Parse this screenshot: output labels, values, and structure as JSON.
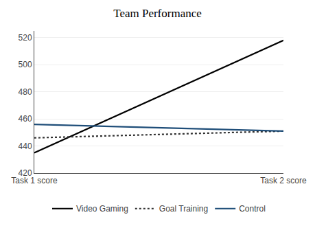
{
  "chart_data": {
    "type": "line",
    "title": "Team Performance",
    "categories": [
      "Task 1 score",
      "Task 2 score"
    ],
    "series": [
      {
        "name": "Video Gaming",
        "color": "#000000",
        "line_style": "solid",
        "values": [
          435,
          518
        ]
      },
      {
        "name": "Goal Training",
        "color": "#333333",
        "line_style": "dotted",
        "values": [
          446,
          451
        ]
      },
      {
        "name": "Control",
        "color": "#1f4e79",
        "line_style": "solid",
        "values": [
          456,
          451
        ]
      }
    ],
    "ylim": [
      420,
      525
    ],
    "yticks": [
      420,
      440,
      460,
      480,
      500,
      520
    ],
    "grid": true,
    "legend": "bottom"
  }
}
